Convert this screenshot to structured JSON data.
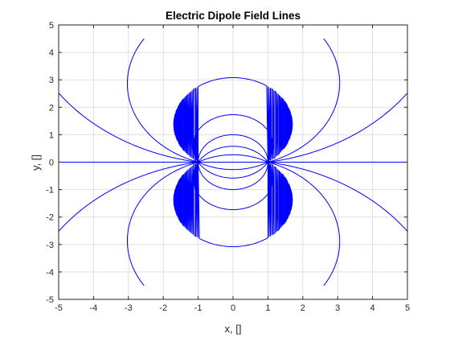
{
  "chart_data": {
    "type": "line",
    "title": "Electric Dipole Field Lines",
    "xlabel": "x, []",
    "ylabel": "y, []",
    "xlim": [
      -5,
      5
    ],
    "ylim": [
      -5,
      5
    ],
    "xticks": [
      -5,
      -4,
      -3,
      -2,
      -1,
      0,
      1,
      2,
      3,
      4,
      5
    ],
    "yticks": [
      -5,
      -4,
      -3,
      -2,
      -1,
      0,
      1,
      2,
      3,
      4,
      5
    ],
    "grid": true,
    "box": true,
    "line_color": "#0000ff",
    "charges": [
      {
        "x": -1,
        "y": 0
      },
      {
        "x": 1,
        "y": 0
      }
    ],
    "field_lines": {
      "circles_upper_y_top": [
        0.27,
        0.58,
        1.0,
        1.73,
        3.08
      ],
      "outer_lines": [
        {
          "end_upper": [
            -2.55,
            4.5
          ],
          "end_lower": [
            -2.55,
            -4.5
          ]
        },
        {
          "end_upper": [
            2.6,
            4.5
          ],
          "end_lower": [
            2.6,
            -4.5
          ]
        },
        {
          "end_upper": [
            -5,
            2.52
          ],
          "end_lower": [
            -5,
            -2.52
          ]
        },
        {
          "end_upper": [
            5,
            2.52
          ],
          "end_lower": [
            5,
            -2.52
          ]
        }
      ],
      "axis_line": {
        "x_range": [
          -5,
          5
        ],
        "y": 0
      }
    }
  }
}
